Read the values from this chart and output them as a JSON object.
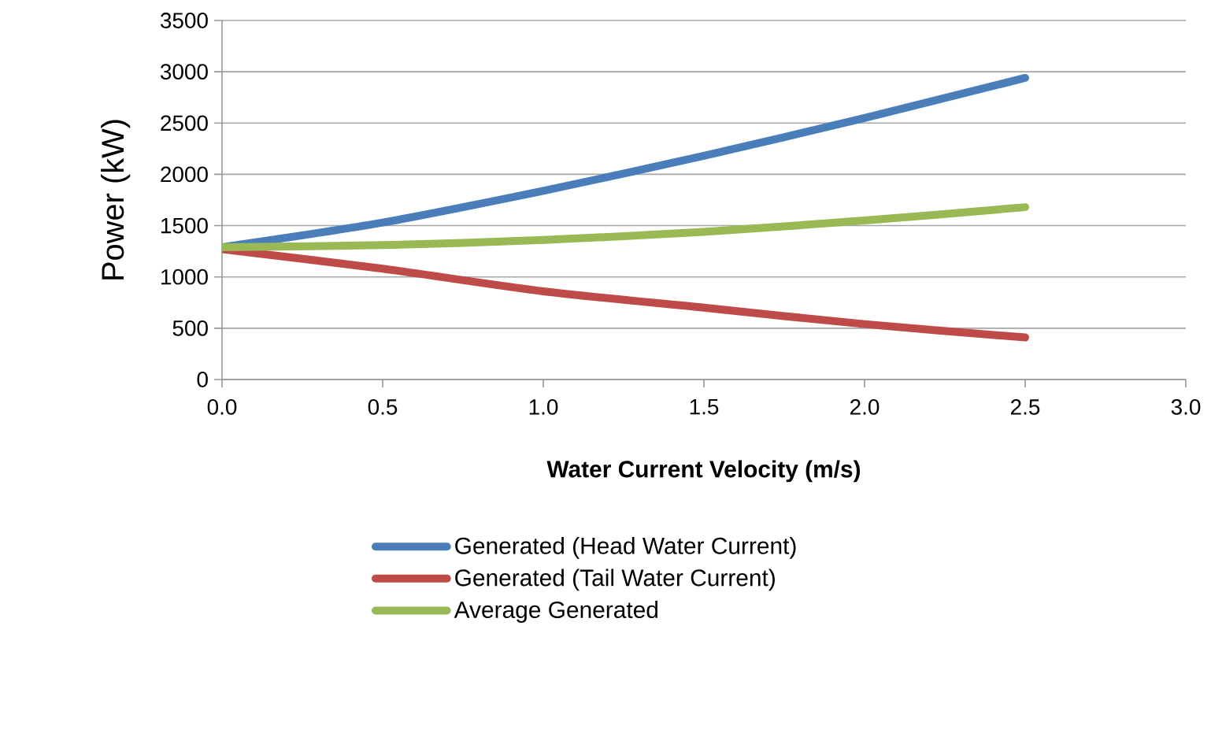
{
  "chart_data": {
    "type": "line",
    "xlabel": "Water Current Velocity (m/s)",
    "ylabel": "Power (kW)",
    "x": [
      0,
      0.5,
      1.0,
      1.5,
      2.0,
      2.5
    ],
    "series": [
      {
        "name": "Generated (Head Water Current)",
        "color": "#4a7ebb",
        "values": [
          1290,
          1530,
          1840,
          2180,
          2550,
          2940
        ]
      },
      {
        "name": "Generated (Tail Water Current)",
        "color": "#be4b48",
        "values": [
          1270,
          1080,
          860,
          700,
          540,
          410
        ]
      },
      {
        "name": "Average Generated",
        "color": "#98b954",
        "values": [
          1290,
          1310,
          1360,
          1440,
          1550,
          1680
        ]
      }
    ],
    "xlim": [
      0,
      3.0
    ],
    "xticks": [
      {
        "value": 0,
        "label": "0.0"
      },
      {
        "value": 0.5,
        "label": "0.5"
      },
      {
        "value": 1.0,
        "label": "1.0"
      },
      {
        "value": 1.5,
        "label": "1.5"
      },
      {
        "value": 2.0,
        "label": "2.0"
      },
      {
        "value": 2.5,
        "label": "2.5"
      },
      {
        "value": 3.0,
        "label": "3.0"
      }
    ],
    "ylim": [
      0,
      3500
    ],
    "yticks": [
      0,
      500,
      1000,
      1500,
      2000,
      2500,
      3000,
      3500
    ],
    "grid": "y",
    "legend": "bottom",
    "marker": "none",
    "line_style": "solid"
  }
}
